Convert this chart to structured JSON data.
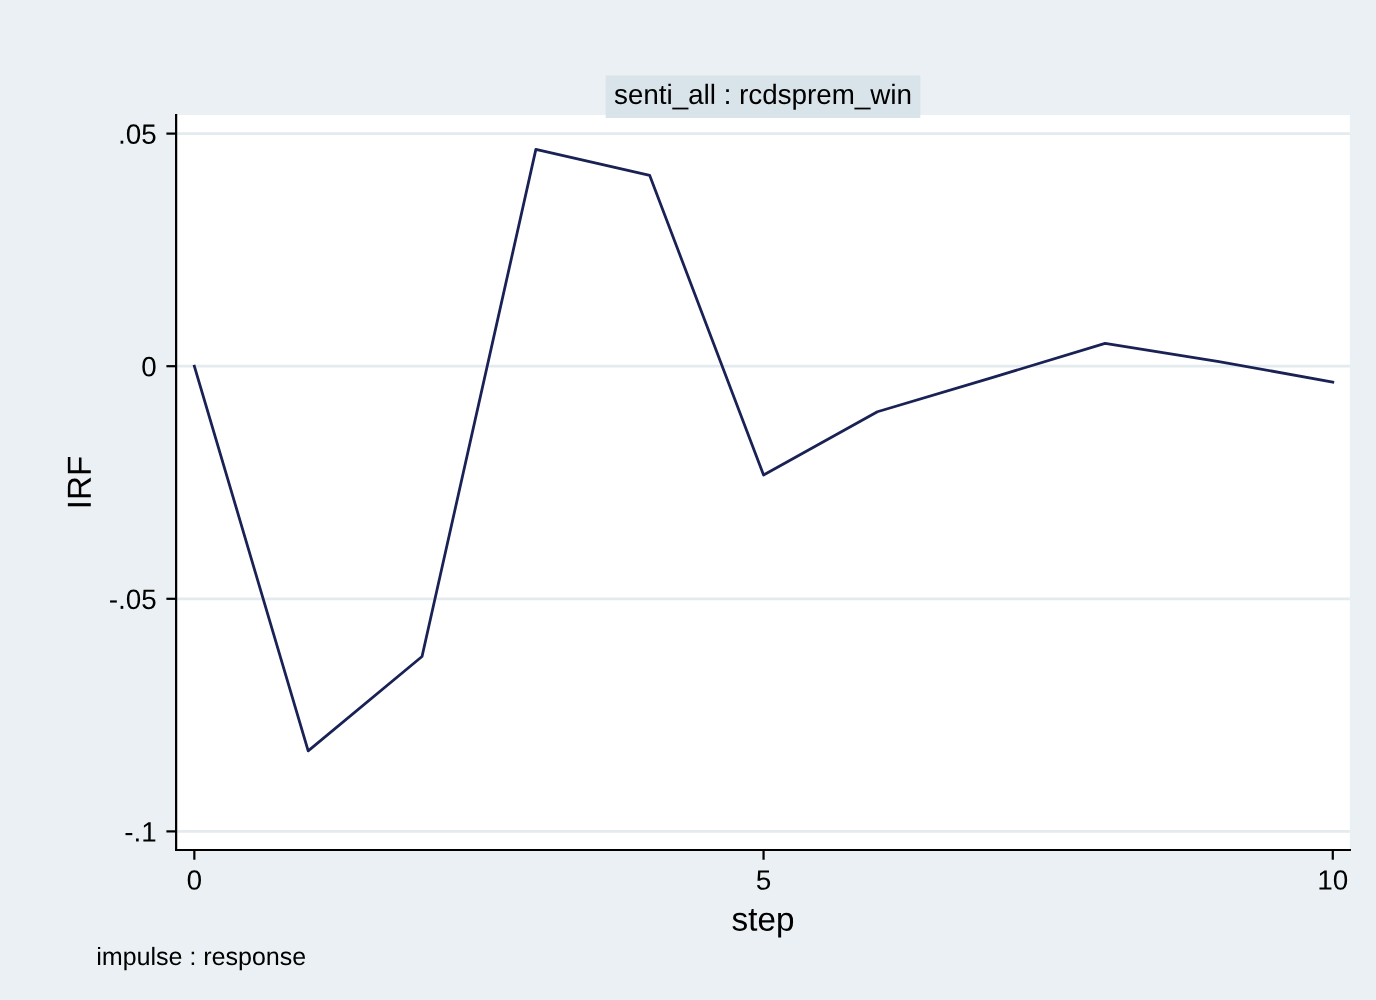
{
  "chart_data": {
    "type": "line",
    "title": "senti_all : rcdsprem_win",
    "xlabel": "step",
    "ylabel": "IRF",
    "annotations": [
      "impulse : response"
    ],
    "x": [
      0,
      1,
      2,
      3,
      4,
      5,
      6,
      7,
      8,
      9,
      10
    ],
    "series": [
      {
        "color": "#1a2255",
        "values": [
          0,
          -0.0827,
          -0.0624,
          0.0466,
          0.041,
          -0.0234,
          -0.0098,
          -0.0025,
          0.0049,
          0.001,
          -0.0034
        ]
      }
    ],
    "xlim": [
      -0.16,
      10.15
    ],
    "xticks": [
      0,
      5,
      10
    ],
    "ylim": [
      -0.104,
      0.054
    ],
    "yticks": [
      {
        "value": 0.05,
        "label": ".05"
      },
      0,
      {
        "value": -0.05,
        "label": "-.05"
      },
      {
        "value": -0.1,
        "label": "-.1"
      }
    ],
    "grid": "y",
    "legend": false,
    "marker": "none",
    "line_style": "solid"
  }
}
